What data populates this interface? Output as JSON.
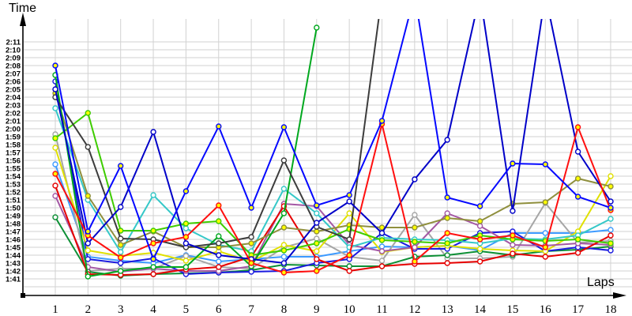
{
  "labels": {
    "y_axis": "Time",
    "x_axis": "Laps"
  },
  "colors": {
    "background": "#ffffff",
    "grid": "#d2d2d2",
    "axis": "#000000"
  },
  "chart_data": {
    "type": "line",
    "title": "",
    "ylabel": "Time",
    "xlabel": "Laps",
    "x": [
      1,
      2,
      3,
      4,
      5,
      6,
      7,
      8,
      9,
      10,
      11,
      12,
      13,
      14,
      15,
      16,
      17,
      18
    ],
    "x_tick_labels": [
      "1",
      "2",
      "3",
      "4",
      "5",
      "6",
      "7",
      "8",
      "9",
      "10",
      "11",
      "12",
      "13",
      "14",
      "15",
      "16",
      "17",
      "18"
    ],
    "y_tick_base_sec": 101,
    "y_tick_labels": [
      "1:41",
      "1:42",
      "1:43",
      "1:44",
      "1:45",
      "1:46",
      "1:47",
      "1:48",
      "1:49",
      "1:50",
      "1:51",
      "1:52",
      "1:53",
      "1:54",
      "1:55",
      "1:56",
      "1:57",
      "1:58",
      "1:59",
      "2:00",
      "2:01",
      "2:02",
      "2:03",
      "2:04",
      "2:05",
      "2:06",
      "2:07",
      "2:08",
      "2:09",
      "2:10",
      "2:11"
    ],
    "y_grid_range_sec": [
      100,
      131
    ],
    "off_chart_sec": 137,
    "legend": "none",
    "grid": "on",
    "note_units": "values are lap times in seconds (101 = 1:41); null = no lap recorded; 137 = spike above chart top",
    "series": [
      {
        "name": "light-blue",
        "color": "#3d9aff",
        "marker_fill": "#ffffff",
        "values": [
          115.5,
          103.8,
          103.3,
          103,
          104,
          103.2,
          103.5,
          103.8,
          103.8,
          104.5,
          105.1,
          105,
          105.2,
          104.6,
          106.8,
          106.8,
          106.8,
          107.2
        ]
      },
      {
        "name": "gray",
        "color": "#a6a6a6",
        "marker_fill": "#ffffff",
        "values": [
          119.3,
          102,
          102.3,
          102.3,
          103.9,
          102.5,
          102.3,
          105,
          106.1,
          103.8,
          103.3,
          109.1,
          103.6,
          103.6,
          103.8,
          110.6,
          105.6,
          105.8
        ]
      },
      {
        "name": "dark-green",
        "color": "#0d8f35",
        "marker_fill": "#ffffff",
        "values": [
          108.8,
          101.9,
          101.4,
          101.6,
          101.7,
          101.8,
          102.1,
          102.8,
          102.7,
          102.6,
          102.6,
          103.8,
          104,
          104.5,
          104,
          104.5,
          104.7,
          105.1
        ]
      },
      {
        "name": "navy-blue",
        "color": "#1a1adf",
        "marker_fill": "#ffffff",
        "values": [
          126,
          103.5,
          103,
          103.6,
          101.6,
          101.8,
          101.9,
          102,
          103,
          103.5,
          106.8,
          104.8,
          104.8,
          106.8,
          107,
          104.5,
          105,
          104.6
        ]
      },
      {
        "name": "yellow",
        "color": "#e0e000",
        "marker_fill": "#ffffff",
        "values": [
          117.6,
          104.6,
          103.9,
          104.3,
          103.3,
          104.5,
          103.2,
          105.3,
          104.5,
          109.3,
          104.4,
          105,
          105.2,
          104.8,
          104.6,
          104.5,
          107,
          114
        ]
      },
      {
        "name": "purple",
        "color": "#a457a4",
        "marker_fill": "#ffffff",
        "values": [
          111.5,
          102.5,
          101.9,
          102.3,
          102,
          102,
          102.6,
          110.5,
          110.2,
          105.3,
          104.5,
          105,
          109.3,
          107.7,
          105.3,
          105.2,
          105.5,
          105.3
        ]
      },
      {
        "name": "dark-red",
        "color": "#e60000",
        "marker_fill": "#ffffff",
        "values": [
          112.8,
          101.6,
          101.5,
          101.6,
          102.2,
          102.5,
          103.8,
          110.2,
          103.5,
          102,
          102.6,
          102.9,
          103,
          103.2,
          104.2,
          103.8,
          104.3,
          106.5
        ]
      },
      {
        "name": "cyan",
        "color": "#35c8c8",
        "marker_fill": "#ffffff",
        "values": [
          122.6,
          111,
          104.4,
          111.6,
          107.4,
          105.3,
          104.5,
          112.4,
          109.3,
          105,
          106.2,
          106,
          105.9,
          105.5,
          106.1,
          106,
          106.5,
          108.6
        ]
      },
      {
        "name": "olive",
        "color": "#8f8f3d",
        "marker_fill": "#ffff00",
        "values": [
          124.5,
          111.5,
          105.3,
          107,
          105,
          105,
          105.5,
          107.5,
          107,
          107.8,
          107.5,
          107.5,
          108.7,
          108.3,
          110.5,
          110.7,
          113.7,
          112.7
        ]
      },
      {
        "name": "bright-green",
        "color": "#3ecc00",
        "marker_fill": "#ffff00",
        "values": [
          118.8,
          122,
          107.1,
          107.1,
          108,
          108.3,
          104,
          104.6,
          105.5,
          107.3,
          105.9,
          105.7,
          105.5,
          106.5,
          106,
          105.8,
          106,
          105.5
        ]
      },
      {
        "name": "green",
        "color": "#00a81e",
        "marker_fill": "#ffffff",
        "values": [
          126.8,
          101.3,
          102,
          102.5,
          102.5,
          106.4,
          102.6,
          109.3,
          132.8,
          null,
          null,
          null,
          null,
          null,
          null,
          null,
          null,
          null
        ]
      },
      {
        "name": "dark-gray",
        "color": "#3c3c3c",
        "marker_fill": "#ffffff",
        "values": [
          124,
          117.7,
          106.1,
          106,
          105,
          105.5,
          106.3,
          116,
          107.6,
          106,
          137,
          null,
          null,
          null,
          null,
          null,
          null,
          null
        ]
      },
      {
        "name": "medium-blue",
        "color": "#0000c8",
        "marker_fill": "#ffffff",
        "values": [
          125,
          105.5,
          110.1,
          119.6,
          105.5,
          104,
          103.5,
          103,
          108.1,
          110.8,
          106.8,
          113.6,
          118.6,
          137,
          109.6,
          137,
          117.1,
          110.8
        ]
      },
      {
        "name": "red",
        "color": "#ff0f0f",
        "marker_fill": "#ffff00",
        "values": [
          114.3,
          106.5,
          103.7,
          105.5,
          106.3,
          110.3,
          103,
          101.8,
          102,
          104,
          120.6,
          103.2,
          106.8,
          106,
          106.5,
          105,
          120.2,
          109.7
        ]
      },
      {
        "name": "blue",
        "color": "#0508ff",
        "marker_fill": "#ffff00",
        "values": [
          128,
          107,
          115.3,
          103.5,
          112.1,
          120.3,
          110,
          120.2,
          110.3,
          111.6,
          121,
          137,
          111.3,
          110.2,
          115.6,
          115.5,
          111.4,
          110
        ]
      }
    ]
  }
}
